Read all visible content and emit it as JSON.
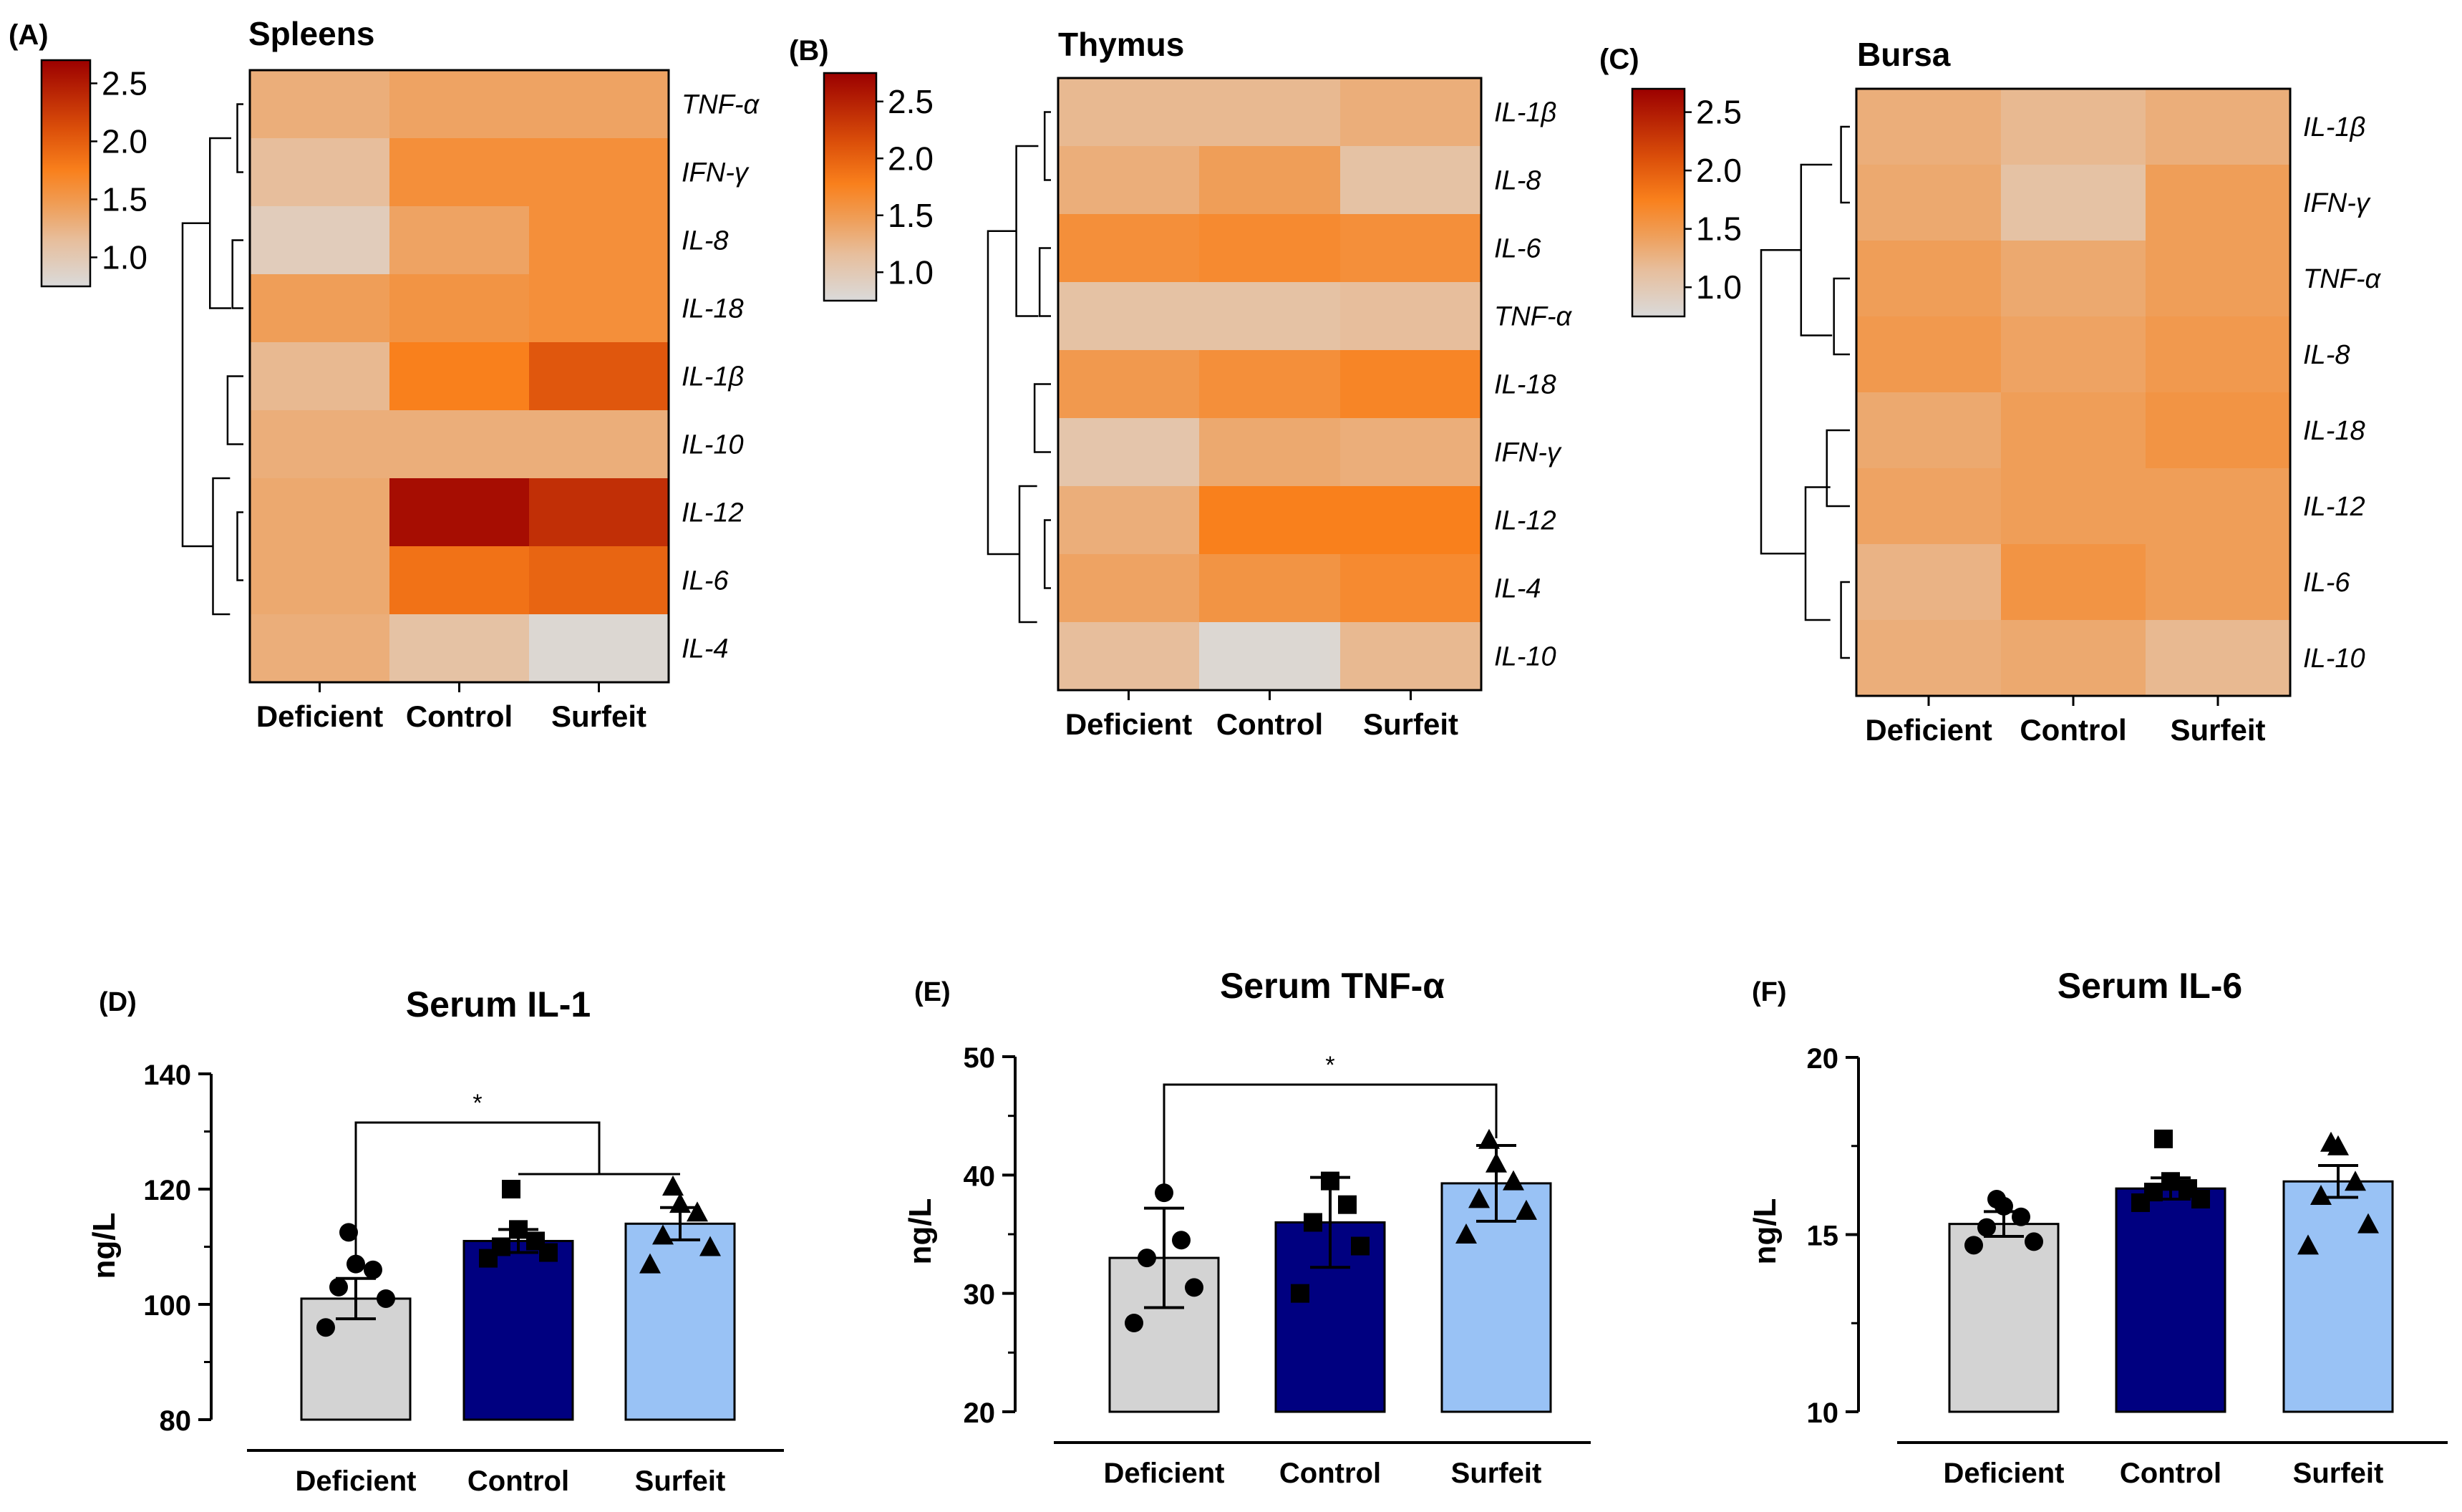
{
  "chart_data": [
    {
      "panel": "(A)",
      "type": "heatmap",
      "title": "Spleens",
      "columns": [
        "Deficient",
        "Control",
        "Surfeit"
      ],
      "rows": [
        "TNF-α",
        "IFN-γ",
        "IL-8",
        "IL-18",
        "IL-1β",
        "IL-10",
        "IL-12",
        "IL-6",
        "IL-4"
      ],
      "values": [
        [
          1.3,
          1.4,
          1.4
        ],
        [
          1.15,
          1.6,
          1.6
        ],
        [
          0.95,
          1.4,
          1.6
        ],
        [
          1.45,
          1.55,
          1.6
        ],
        [
          1.2,
          1.75,
          2.05
        ],
        [
          1.3,
          1.3,
          1.3
        ],
        [
          1.35,
          2.6,
          2.35
        ],
        [
          1.35,
          1.85,
          1.95
        ],
        [
          1.3,
          1.1,
          0.8
        ]
      ],
      "colorbar": {
        "ticks": [
          "2.5",
          "2.0",
          "1.5",
          "1.0"
        ],
        "range": [
          0.75,
          2.7
        ]
      }
    },
    {
      "panel": "(B)",
      "type": "heatmap",
      "title": "Thymus",
      "columns": [
        "Deficient",
        "Control",
        "Surfeit"
      ],
      "rows": [
        "IL-1β",
        "IL-8",
        "IL-6",
        "TNF-α",
        "IL-18",
        "IFN-γ",
        "IL-12",
        "IL-4",
        "IL-10"
      ],
      "values": [
        [
          1.2,
          1.2,
          1.3
        ],
        [
          1.3,
          1.45,
          1.1
        ],
        [
          1.6,
          1.65,
          1.6
        ],
        [
          1.1,
          1.1,
          1.15
        ],
        [
          1.5,
          1.6,
          1.7
        ],
        [
          1.05,
          1.35,
          1.3
        ],
        [
          1.3,
          1.75,
          1.75
        ],
        [
          1.4,
          1.55,
          1.65
        ],
        [
          1.15,
          0.8,
          1.2
        ]
      ],
      "colorbar": {
        "ticks": [
          "2.5",
          "2.0",
          "1.5",
          "1.0"
        ],
        "range": [
          0.75,
          2.75
        ]
      }
    },
    {
      "panel": "(C)",
      "type": "heatmap",
      "title": "Bursa",
      "columns": [
        "Deficient",
        "Control",
        "Surfeit"
      ],
      "rows": [
        "IL-1β",
        "IFN-γ",
        "TNF-α",
        "IL-8",
        "IL-18",
        "IL-12",
        "IL-6",
        "IL-10"
      ],
      "values": [
        [
          1.3,
          1.2,
          1.3
        ],
        [
          1.35,
          1.1,
          1.45
        ],
        [
          1.45,
          1.35,
          1.45
        ],
        [
          1.5,
          1.4,
          1.5
        ],
        [
          1.35,
          1.45,
          1.55
        ],
        [
          1.4,
          1.45,
          1.45
        ],
        [
          1.25,
          1.55,
          1.45
        ],
        [
          1.3,
          1.35,
          1.2
        ]
      ],
      "colorbar": {
        "ticks": [
          "2.5",
          "2.0",
          "1.5",
          "1.0"
        ],
        "range": [
          0.75,
          2.7
        ]
      }
    },
    {
      "panel": "(D)",
      "type": "bar",
      "title": "Serum IL-1",
      "ylabel": "ng/L",
      "categories": [
        "Deficient",
        "Control",
        "Surfeit"
      ],
      "values": [
        101,
        111,
        114
      ],
      "sem": [
        3.5,
        2.0,
        2.8
      ],
      "points": [
        [
          96,
          101,
          103,
          106,
          107,
          112.5
        ],
        [
          108,
          109,
          110,
          111,
          113,
          120
        ],
        [
          107,
          110,
          112,
          116,
          117.5,
          120.5
        ]
      ],
      "markers": [
        "circle",
        "square",
        "triangle"
      ],
      "colors": [
        "#d3d3d3",
        "#000080",
        "#99c2f5"
      ],
      "ylim": [
        80,
        140
      ],
      "yticks": [
        80,
        100,
        120,
        140
      ],
      "significance": {
        "text": "*",
        "from": "Deficient",
        "to": [
          "Control",
          "Surfeit"
        ]
      }
    },
    {
      "panel": "(E)",
      "type": "bar",
      "title": "Serum TNF-α",
      "ylabel": "ng/L",
      "categories": [
        "Deficient",
        "Control",
        "Surfeit"
      ],
      "values": [
        33,
        36,
        39.3
      ],
      "sem": [
        4.2,
        3.8,
        3.2
      ],
      "points": [
        [
          27.5,
          30.5,
          33,
          34.5,
          38.5
        ],
        [
          30,
          34,
          36,
          37.5,
          39.5
        ],
        [
          35,
          37,
          38,
          39.5,
          41,
          43
        ]
      ],
      "markers": [
        "circle",
        "square",
        "triangle"
      ],
      "colors": [
        "#d3d3d3",
        "#000080",
        "#99c2f5"
      ],
      "ylim": [
        20,
        50
      ],
      "yticks": [
        20,
        30,
        40,
        50
      ],
      "significance": {
        "text": "*",
        "from": "Deficient",
        "to": [
          "Surfeit"
        ]
      }
    },
    {
      "panel": "(F)",
      "type": "bar",
      "title": "Serum IL-6",
      "ylabel": "ng/L",
      "categories": [
        "Deficient",
        "Control",
        "Surfeit"
      ],
      "values": [
        15.3,
        16.3,
        16.5
      ],
      "sem": [
        0.35,
        0.3,
        0.45
      ],
      "points": [
        [
          14.7,
          14.8,
          15.2,
          15.5,
          15.8,
          16.0
        ],
        [
          15.9,
          16.0,
          16.2,
          16.3,
          16.5,
          17.7
        ],
        [
          14.7,
          15.3,
          16.1,
          16.5,
          17.5,
          17.6
        ]
      ],
      "markers": [
        "circle",
        "square",
        "triangle"
      ],
      "colors": [
        "#d3d3d3",
        "#000080",
        "#99c2f5"
      ],
      "ylim": [
        10,
        20
      ],
      "yticks": [
        10,
        15,
        20
      ]
    }
  ]
}
